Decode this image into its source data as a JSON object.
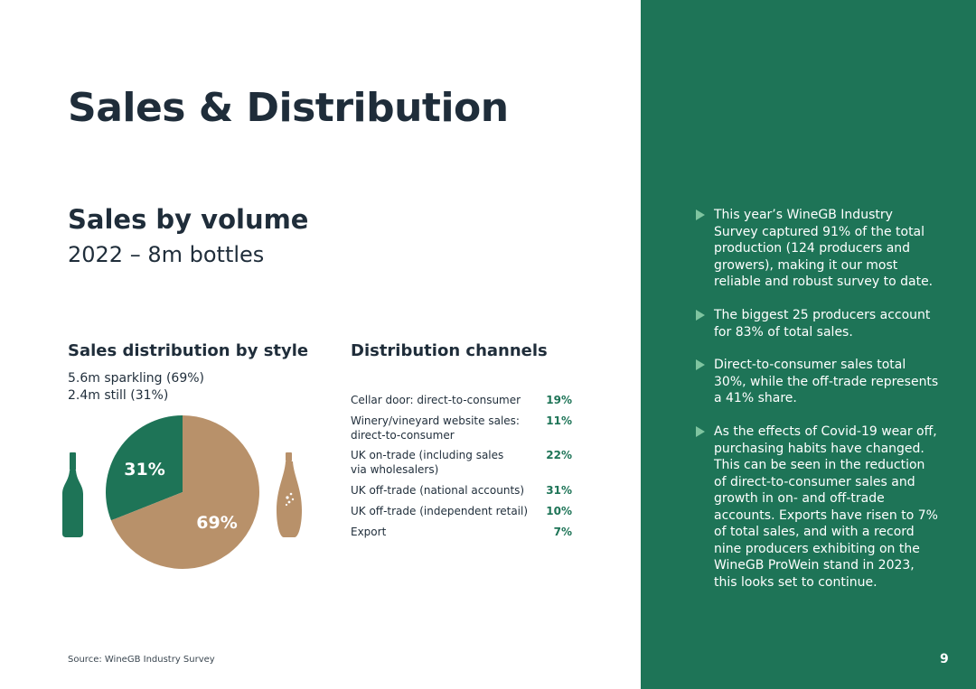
{
  "page": {
    "title": "Sales & Distribution",
    "page_number": "9",
    "source": "Source: WineGB Industry Survey"
  },
  "volume": {
    "heading": "Sales by volume",
    "subheading": "2022 – 8m bottles"
  },
  "style_distribution": {
    "heading": "Sales distribution by style",
    "lines": [
      "5.6m sparkling (69%)",
      "2.4m still (31%)"
    ],
    "pie_label_still": "31%",
    "pie_label_sparkling": "69%"
  },
  "chart_data": {
    "type": "pie",
    "categories": [
      "still",
      "sparkling"
    ],
    "values": [
      31,
      69
    ],
    "colors": [
      "#1e7457",
      "#b8916a"
    ]
  },
  "channels": {
    "heading": "Distribution channels",
    "rows": [
      {
        "label": "Cellar door: direct-to-consumer",
        "value": "19%"
      },
      {
        "label": "Winery/vineyard website sales: direct-to-consumer",
        "value": "11%"
      },
      {
        "label": "UK on-trade (including sales via wholesalers)",
        "value": "22%"
      },
      {
        "label": "UK off-trade (national accounts)",
        "value": "31%"
      },
      {
        "label": "UK off-trade (independent retail)",
        "value": "10%"
      },
      {
        "label": "Export",
        "value": "7%"
      }
    ]
  },
  "sidebar": {
    "bullets": [
      "This year’s WineGB Industry Survey captured 91% of the total production (124 producers and growers), making it our most reliable and robust survey to date.",
      "The biggest 25 producers account for 83% of total sales.",
      "Direct-to-consumer sales total 30%, while the off-trade represents a 41% share.",
      "As the effects of Covid-19 wear off, purchasing habits have changed. This can be seen in the reduction of direct-to-consumer sales and growth in on- and off-trade accounts. Exports have risen to 7% of total sales, and with a record nine producers exhibiting on the WineGB ProWein stand in 2023, this looks set to continue."
    ]
  },
  "colors": {
    "accent_green": "#1e7457",
    "tan": "#b8916a",
    "bullet_arrow": "#7fc4a0"
  },
  "icons": {
    "still_bottle": "still-wine-bottle-icon",
    "sparkling_bottle": "sparkling-wine-bottle-icon"
  }
}
